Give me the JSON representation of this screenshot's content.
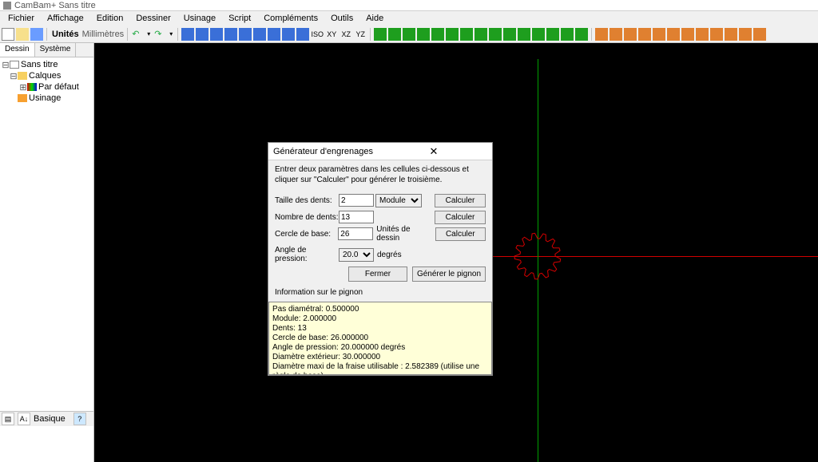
{
  "app": {
    "title": "CamBam+   Sans titre"
  },
  "menu": [
    "Fichier",
    "Affichage",
    "Edition",
    "Dessiner",
    "Usinage",
    "Script",
    "Compléments",
    "Outils",
    "Aide"
  ],
  "toolbar": {
    "units_label": "Unités",
    "units_value": "Millimètres",
    "view_buttons": [
      "ISO",
      "XY",
      "XZ",
      "YZ"
    ]
  },
  "left": {
    "tabs": [
      "Dessin",
      "Système"
    ],
    "active_tab": 0,
    "tree": {
      "root": "Sans titre",
      "items": [
        {
          "label": "Calques",
          "icon": "folder",
          "children": [
            {
              "label": "Par défaut",
              "icon": "layer"
            }
          ]
        },
        {
          "label": "Usinage",
          "icon": "mach"
        }
      ]
    },
    "propgrid_label": "Basique"
  },
  "canvas": {
    "bg": "#000000",
    "axis_x_color": "#d00000",
    "axis_y_color": "#00a000",
    "gear_stroke": "#d00000",
    "gear_teeth": 13
  },
  "dialog": {
    "title": "Générateur d'engrenages",
    "instructions": "Entrer deux paramètres dans les cellules ci-dessous et cliquer sur \"Calculer\" pour générer le troisième.",
    "rows": {
      "tooth_size": {
        "label": "Taille des dents:",
        "value": "2",
        "select": "Module",
        "calc": "Calculer"
      },
      "num_teeth": {
        "label": "Nombre de dents:",
        "value": "13",
        "calc": "Calculer"
      },
      "base_circle": {
        "label": "Cercle de base:",
        "value": "26",
        "unit": "Unités de dessin",
        "calc": "Calculer"
      },
      "pressure": {
        "label": "Angle de pression:",
        "value": "20.0",
        "unit": "degrés"
      }
    },
    "buttons": {
      "close": "Fermer",
      "generate": "Générer le pignon"
    },
    "info_label": "Information sur le pignon",
    "info_text": "Pas diamétral: 0.500000\nModule: 2.000000\nDents: 13\nCercle de base: 26.000000\nAngle de pression: 20.000000 degrés\nDiamètre extérieur: 30.000000\nDiamètre maxi de la fraise utilisable : 2.582389 (utilise une règle de base)\nAttention, des problèmes de coupe peuvent apparaitre, envisagez d'augmenter le nombre de dents."
  }
}
